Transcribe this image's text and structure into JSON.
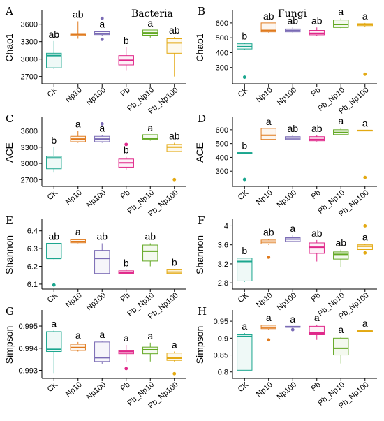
{
  "col_titles": {
    "left": "Bacteria",
    "right": "Fungi"
  },
  "categories": [
    "CK",
    "Np10",
    "Np100",
    "Pb",
    "Pb_Np10",
    "Pb_Np100"
  ],
  "colors": [
    "#1aa68e",
    "#e07b1f",
    "#7a6bb5",
    "#e0288a",
    "#62a822",
    "#e3a912"
  ],
  "chart_data": [
    {
      "id": "A",
      "type": "boxplot",
      "ylabel": "Chao1",
      "title": "Bacteria",
      "ylim": [
        2600,
        3800
      ],
      "yticks": [
        2700,
        3000,
        3300,
        3600
      ],
      "boxes": [
        {
          "category": "CK",
          "min": 2830,
          "q1": 2850,
          "median": 3060,
          "q3": 3100,
          "max": 3310,
          "outliers": [],
          "sig": "ab"
        },
        {
          "category": "Np10",
          "min": 3350,
          "q1": 3400,
          "median": 3420,
          "q3": 3440,
          "max": 3650,
          "outliers": [],
          "sig": "ab"
        },
        {
          "category": "Np100",
          "min": 3400,
          "q1": 3420,
          "median": 3440,
          "q3": 3470,
          "max": 3480,
          "outliers": [
            3340,
            3700
          ],
          "sig": "a"
        },
        {
          "category": "Pb",
          "min": 2810,
          "q1": 2900,
          "median": 2980,
          "q3": 3060,
          "max": 3200,
          "outliers": [],
          "sig": "b"
        },
        {
          "category": "Pb_Np10",
          "min": 3370,
          "q1": 3410,
          "median": 3450,
          "q3": 3500,
          "max": 3500,
          "outliers": [],
          "sig": "a"
        },
        {
          "category": "Pb_Np100",
          "min": 2700,
          "q1": 3100,
          "median": 3280,
          "q3": 3350,
          "max": 3380,
          "outliers": [],
          "sig": "ab"
        }
      ]
    },
    {
      "id": "B",
      "type": "boxplot",
      "ylabel": "Chao1",
      "title": "Fungi",
      "ylim": [
        200,
        670
      ],
      "yticks": [
        300,
        400,
        500,
        600
      ],
      "boxes": [
        {
          "category": "CK",
          "min": 420,
          "q1": 425,
          "median": 440,
          "q3": 460,
          "max": 465,
          "outliers": [
            235
          ],
          "sig": "b"
        },
        {
          "category": "Np10",
          "min": 535,
          "q1": 540,
          "median": 550,
          "q3": 600,
          "max": 600,
          "outliers": [],
          "sig": "ab"
        },
        {
          "category": "Np100",
          "min": 535,
          "q1": 540,
          "median": 550,
          "q3": 560,
          "max": 570,
          "outliers": [],
          "sig": "ab"
        },
        {
          "category": "Pb",
          "min": 515,
          "q1": 520,
          "median": 530,
          "q3": 550,
          "max": 570,
          "outliers": [],
          "sig": "ab"
        },
        {
          "category": "Pb_Np10",
          "min": 565,
          "q1": 570,
          "median": 590,
          "q3": 620,
          "max": 630,
          "outliers": [],
          "sig": "a"
        },
        {
          "category": "Pb_Np100",
          "min": 575,
          "q1": 582,
          "median": 590,
          "q3": 595,
          "max": 600,
          "outliers": [
            255
          ],
          "sig": "a"
        }
      ]
    },
    {
      "id": "C",
      "type": "boxplot",
      "ylabel": "ACE",
      "ylim": [
        2600,
        3800
      ],
      "yticks": [
        2700,
        3000,
        3300,
        3600
      ],
      "boxes": [
        {
          "category": "CK",
          "min": 2830,
          "q1": 2900,
          "median": 3100,
          "q3": 3130,
          "max": 3300,
          "outliers": [],
          "sig": "b"
        },
        {
          "category": "Np10",
          "min": 3380,
          "q1": 3400,
          "median": 3450,
          "q3": 3500,
          "max": 3600,
          "outliers": [],
          "sig": "a"
        },
        {
          "category": "Np100",
          "min": 3380,
          "q1": 3400,
          "median": 3450,
          "q3": 3500,
          "max": 3520,
          "outliers": [
            3730
          ],
          "sig": "a"
        },
        {
          "category": "Pb",
          "min": 2880,
          "q1": 2930,
          "median": 3010,
          "q3": 3080,
          "max": 3120,
          "outliers": [
            3350
          ],
          "sig": "b"
        },
        {
          "category": "Pb_Np10",
          "min": 3420,
          "q1": 3440,
          "median": 3460,
          "q3": 3530,
          "max": 3530,
          "outliers": [],
          "sig": "a"
        },
        {
          "category": "Pb_Np100",
          "min": 3220,
          "q1": 3220,
          "median": 3300,
          "q3": 3350,
          "max": 3380,
          "outliers": [
            2700
          ],
          "sig": "ab"
        }
      ]
    },
    {
      "id": "D",
      "type": "boxplot",
      "ylabel": "ACE",
      "ylim": [
        200,
        670
      ],
      "yticks": [
        300,
        400,
        500,
        600
      ],
      "boxes": [
        {
          "category": "CK",
          "min": 430,
          "q1": 432,
          "median": 432,
          "q3": 434,
          "max": 436,
          "outliers": [
            240
          ],
          "sig": "b"
        },
        {
          "category": "Np10",
          "min": 530,
          "q1": 530,
          "median": 560,
          "q3": 610,
          "max": 610,
          "outliers": [],
          "sig": "a"
        },
        {
          "category": "Np100",
          "min": 525,
          "q1": 530,
          "median": 540,
          "q3": 550,
          "max": 560,
          "outliers": [],
          "sig": "ab"
        },
        {
          "category": "Pb",
          "min": 515,
          "q1": 520,
          "median": 530,
          "q3": 550,
          "max": 560,
          "outliers": [],
          "sig": "ab"
        },
        {
          "category": "Pb_Np10",
          "min": 560,
          "q1": 565,
          "median": 580,
          "q3": 600,
          "max": 615,
          "outliers": [],
          "sig": "a"
        },
        {
          "category": "Pb_Np100",
          "min": 593,
          "q1": 595,
          "median": 595,
          "q3": 596,
          "max": 597,
          "outliers": [
            255
          ],
          "sig": "a"
        }
      ]
    },
    {
      "id": "E",
      "type": "boxplot",
      "ylabel": "Shannon",
      "ylim": [
        6.08,
        6.45
      ],
      "yticks": [
        6.1,
        6.2,
        6.3,
        6.4
      ],
      "boxes": [
        {
          "category": "CK",
          "min": 6.24,
          "q1": 6.245,
          "median": 6.245,
          "q3": 6.33,
          "max": 6.33,
          "outliers": [
            6.095
          ],
          "sig": "ab"
        },
        {
          "category": "Np10",
          "min": 6.33,
          "q1": 6.333,
          "median": 6.34,
          "q3": 6.35,
          "max": 6.355,
          "outliers": [],
          "sig": "a"
        },
        {
          "category": "Np100",
          "min": 6.16,
          "q1": 6.16,
          "median": 6.245,
          "q3": 6.29,
          "max": 6.33,
          "outliers": [],
          "sig": "ab"
        },
        {
          "category": "Pb",
          "min": 6.16,
          "q1": 6.16,
          "median": 6.165,
          "q3": 6.175,
          "max": 6.18,
          "outliers": [],
          "sig": "b"
        },
        {
          "category": "Pb_Np10",
          "min": 6.2,
          "q1": 6.23,
          "median": 6.285,
          "q3": 6.32,
          "max": 6.33,
          "outliers": [],
          "sig": "ab"
        },
        {
          "category": "Pb_Np100",
          "min": 6.155,
          "q1": 6.16,
          "median": 6.168,
          "q3": 6.18,
          "max": 6.185,
          "outliers": [],
          "sig": "b"
        }
      ]
    },
    {
      "id": "F",
      "type": "boxplot",
      "ylabel": "Shannon",
      "ylim": [
        2.7,
        4.08
      ],
      "yticks": [
        2.8,
        3.2,
        3.6,
        4.0
      ],
      "boxes": [
        {
          "category": "CK",
          "min": 2.82,
          "q1": 2.84,
          "median": 3.25,
          "q3": 3.32,
          "max": 3.33,
          "outliers": [],
          "sig": "b"
        },
        {
          "category": "Np10",
          "min": 3.6,
          "q1": 3.62,
          "median": 3.66,
          "q3": 3.7,
          "max": 3.72,
          "outliers": [
            3.34
          ],
          "sig": "ab"
        },
        {
          "category": "Np100",
          "min": 3.66,
          "q1": 3.67,
          "median": 3.72,
          "q3": 3.75,
          "max": 3.8,
          "outliers": [],
          "sig": "a"
        },
        {
          "category": "Pb",
          "min": 3.25,
          "q1": 3.42,
          "median": 3.55,
          "q3": 3.64,
          "max": 3.7,
          "outliers": [],
          "sig": "ab"
        },
        {
          "category": "Pb_Np10",
          "min": 3.14,
          "q1": 3.3,
          "median": 3.4,
          "q3": 3.45,
          "max": 3.5,
          "outliers": [],
          "sig": "ab"
        },
        {
          "category": "Pb_Np100",
          "min": 3.5,
          "q1": 3.5,
          "median": 3.57,
          "q3": 3.6,
          "max": 3.62,
          "outliers": [
            3.43,
            4.0
          ],
          "sig": "a"
        }
      ]
    },
    {
      "id": "G",
      "type": "boxplot",
      "ylabel": "Simpson",
      "ylim": [
        0.9927,
        0.9956
      ],
      "yticks": [
        0.993,
        0.994,
        0.995
      ],
      "boxes": [
        {
          "category": "CK",
          "min": 0.99288,
          "q1": 0.99385,
          "median": 0.99395,
          "q3": 0.99475,
          "max": 0.9948,
          "outliers": [],
          "sig": "a"
        },
        {
          "category": "Np10",
          "min": 0.99385,
          "q1": 0.9939,
          "median": 0.99403,
          "q3": 0.99418,
          "max": 0.99428,
          "outliers": [],
          "sig": "a"
        },
        {
          "category": "Np100",
          "min": 0.9933,
          "q1": 0.9934,
          "median": 0.99357,
          "q3": 0.99428,
          "max": 0.9943,
          "outliers": [],
          "sig": "a"
        },
        {
          "category": "Pb",
          "min": 0.99336,
          "q1": 0.99375,
          "median": 0.99385,
          "q3": 0.9939,
          "max": 0.99415,
          "outliers": [
            0.99308
          ],
          "sig": "a"
        },
        {
          "category": "Pb_Np10",
          "min": 0.9934,
          "q1": 0.99375,
          "median": 0.99393,
          "q3": 0.99405,
          "max": 0.99425,
          "outliers": [],
          "sig": "a"
        },
        {
          "category": "Pb_Np100",
          "min": 0.9934,
          "q1": 0.99345,
          "median": 0.99355,
          "q3": 0.99378,
          "max": 0.99385,
          "outliers": [
            0.99285
          ],
          "sig": "a"
        }
      ]
    },
    {
      "id": "H",
      "type": "boxplot",
      "ylabel": "Simpson",
      "ylim": [
        0.785,
        0.975
      ],
      "yticks": [
        0.8,
        0.85,
        0.9,
        0.95
      ],
      "boxes": [
        {
          "category": "CK",
          "min": 0.805,
          "q1": 0.805,
          "median": 0.905,
          "q3": 0.91,
          "max": 0.915,
          "outliers": [],
          "sig": "a"
        },
        {
          "category": "Np10",
          "min": 0.925,
          "q1": 0.928,
          "median": 0.932,
          "q3": 0.938,
          "max": 0.94,
          "outliers": [
            0.895
          ],
          "sig": "a"
        },
        {
          "category": "Np100",
          "min": 0.93,
          "q1": 0.932,
          "median": 0.933,
          "q3": 0.935,
          "max": 0.936,
          "outliers": [
            0.925
          ],
          "sig": "a"
        },
        {
          "category": "Pb",
          "min": 0.895,
          "q1": 0.91,
          "median": 0.915,
          "q3": 0.935,
          "max": 0.94,
          "outliers": [],
          "sig": "a"
        },
        {
          "category": "Pb_Np10",
          "min": 0.825,
          "q1": 0.85,
          "median": 0.87,
          "q3": 0.9,
          "max": 0.905,
          "outliers": [],
          "sig": "a"
        },
        {
          "category": "Pb_Np100",
          "min": 0.918,
          "q1": 0.919,
          "median": 0.921,
          "q3": 0.922,
          "max": 0.923,
          "outliers": [],
          "sig": "a"
        }
      ]
    }
  ]
}
